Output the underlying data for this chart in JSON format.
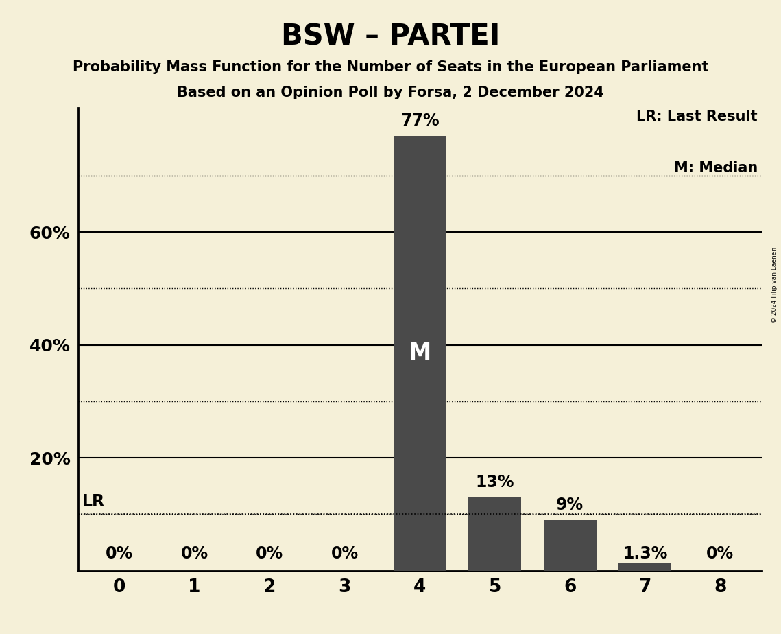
{
  "title": "BSW – PARTEI",
  "subtitle1": "Probability Mass Function for the Number of Seats in the European Parliament",
  "subtitle2": "Based on an Opinion Poll by Forsa, 2 December 2024",
  "copyright": "© 2024 Filip van Laenen",
  "categories": [
    0,
    1,
    2,
    3,
    4,
    5,
    6,
    7,
    8
  ],
  "values": [
    0.0,
    0.0,
    0.0,
    0.0,
    77.0,
    13.0,
    9.0,
    1.3,
    0.0
  ],
  "bar_labels": [
    "0%",
    "0%",
    "0%",
    "0%",
    "77%",
    "13%",
    "9%",
    "1.3%",
    "0%"
  ],
  "bar_color": "#4a4a4a",
  "background_color": "#f5f0d8",
  "median_bar": 4,
  "median_label": "M",
  "lr_line_y": 10.0,
  "lr_label": "LR",
  "solid_gridlines": [
    20,
    40,
    60
  ],
  "dotted_gridlines": [
    10,
    30,
    50,
    70
  ],
  "ytick_positions": [
    20,
    40,
    60
  ],
  "ytick_labels": [
    "20%",
    "40%",
    "60%"
  ],
  "ylim": [
    0,
    82
  ],
  "xlim": [
    -0.55,
    8.55
  ],
  "legend_lr": "LR: Last Result",
  "legend_m": "M: Median",
  "figsize": [
    11.39,
    9.24
  ],
  "dpi": 100,
  "title_fontsize": 30,
  "subtitle_fontsize": 15,
  "bar_label_fontsize": 17,
  "ytick_fontsize": 18,
  "xtick_fontsize": 19,
  "legend_fontsize": 15,
  "lr_fontsize": 17,
  "m_fontsize": 24
}
